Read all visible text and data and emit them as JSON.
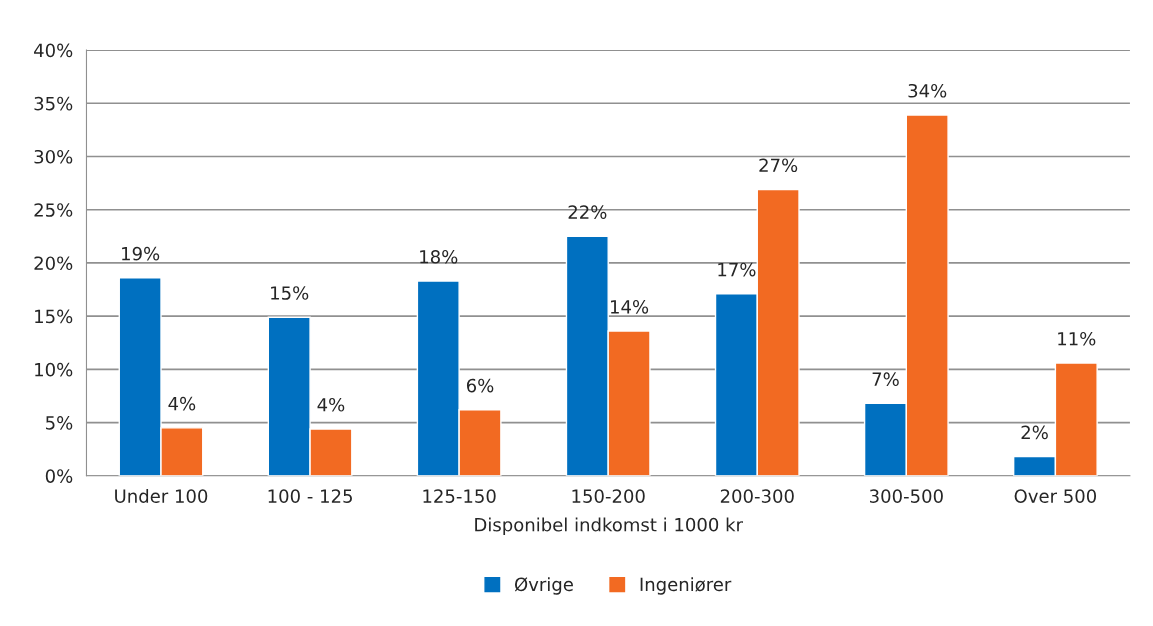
{
  "chart_data": {
    "type": "bar",
    "xlabel": "Disponibel indkomst i 1000 kr",
    "categories": [
      "Under 100",
      "100 - 125",
      "125-150",
      "150-200",
      "200-300",
      "300-500",
      "Over 500"
    ],
    "series": [
      {
        "name": "Øvrige",
        "color": "#0070c0",
        "values": [
          18.6,
          14.9,
          18.3,
          22.5,
          17.1,
          6.8,
          1.8
        ],
        "value_labels": [
          "19%",
          "15%",
          "18%",
          "22%",
          "17%",
          "7%",
          "2%"
        ]
      },
      {
        "name": "Ingeniører",
        "color": "#f26a22",
        "values": [
          4.5,
          4.4,
          6.2,
          13.6,
          26.9,
          33.9,
          10.6
        ],
        "value_labels": [
          "4%",
          "4%",
          "6%",
          "14%",
          "27%",
          "34%",
          "11%"
        ]
      }
    ],
    "ylim": [
      0,
      40
    ],
    "yticks": [
      {
        "value": 0,
        "label": "0%"
      },
      {
        "value": 5,
        "label": "5%"
      },
      {
        "value": 10,
        "label": "10%"
      },
      {
        "value": 15,
        "label": "15%"
      },
      {
        "value": 20,
        "label": "20%"
      },
      {
        "value": 25,
        "label": "25%"
      },
      {
        "value": 30,
        "label": "30%"
      },
      {
        "value": 35,
        "label": "35%"
      },
      {
        "value": 40,
        "label": "40%"
      }
    ],
    "grid": "y",
    "legend": "bottom"
  }
}
